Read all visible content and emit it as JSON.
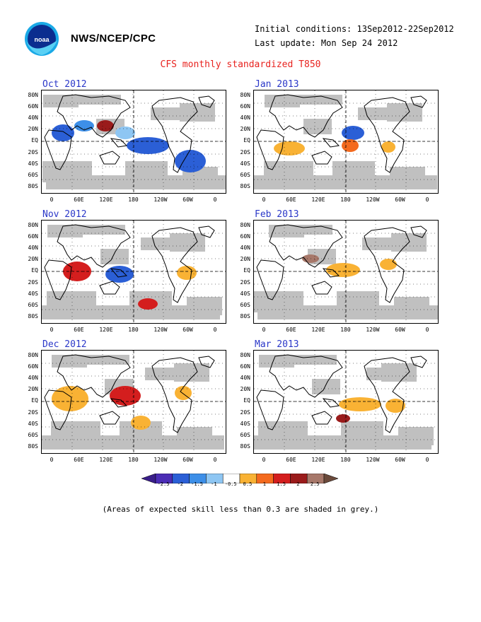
{
  "header": {
    "org": "NWS/NCEP/CPC",
    "initial_conditions": "Initial conditions: 13Sep2012-22Sep2012",
    "last_update": "Last update: Mon Sep 24 2012",
    "title": "CFS monthly standardized T850"
  },
  "logo": {
    "icon": "noaa-logo-icon"
  },
  "panels": [
    {
      "label": "Oct 2012"
    },
    {
      "label": "Jan 2013"
    },
    {
      "label": "Nov 2012"
    },
    {
      "label": "Feb 2013"
    },
    {
      "label": "Dec 2012"
    },
    {
      "label": "Mar 2013"
    }
  ],
  "lat_labels": [
    "80N",
    "60N",
    "40N",
    "20N",
    "EQ",
    "20S",
    "40S",
    "60S",
    "80S"
  ],
  "lon_labels": [
    "0",
    "60E",
    "120E",
    "180",
    "120W",
    "60W",
    "0"
  ],
  "colorbar": {
    "labels": [
      "-2.5",
      "-2",
      "-1.5",
      "-1",
      "-0.5",
      "0.5",
      "1",
      "1.5",
      "2",
      "2.5"
    ],
    "colors": [
      "#4b2db5",
      "#2b5fd6",
      "#3d8fe8",
      "#8ec6f3",
      "#ffffff",
      "#f9b234",
      "#f46a1e",
      "#d41e1e",
      "#9a1b1b",
      "#a7786a"
    ],
    "end_low": "#3a1e8a",
    "end_high": "#6b4a3b"
  },
  "colors": {
    "grey_shading": "#c0c0c0",
    "title": "#e8231f",
    "panel_label": "#2a37c8"
  },
  "note": "(Areas of expected skill less than 0.3 are shaded in grey.)"
}
